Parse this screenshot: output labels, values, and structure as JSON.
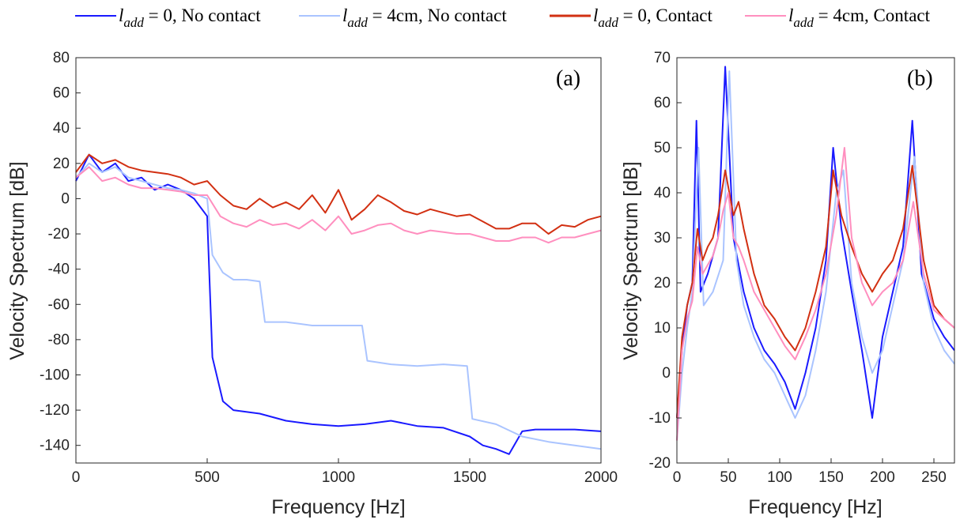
{
  "legend": [
    {
      "var": "l",
      "sub": "add",
      "rest": " = 0, No contact",
      "color": "#1a1aff"
    },
    {
      "var": "l",
      "sub": "add",
      "rest": " = 4cm, No contact",
      "color": "#aac4ff"
    },
    {
      "var": "l",
      "sub": "add",
      "rest": " = 0, Contact",
      "color": "#d23012"
    },
    {
      "var": "l",
      "sub": "add",
      "rest": " = 4cm, Contact",
      "color": "#ff8fbf"
    }
  ],
  "chart_data": [
    {
      "type": "line",
      "panel_label": "(a)",
      "xlabel": "Frequency [Hz]",
      "ylabel": "Velocity Spectrum [dB]",
      "xlim": [
        0,
        2000
      ],
      "ylim": [
        -150,
        80
      ],
      "xticks": [
        0,
        500,
        1000,
        1500,
        2000
      ],
      "yticks": [
        80,
        60,
        40,
        20,
        0,
        -20,
        -40,
        -60,
        -80,
        -100,
        -120,
        -140
      ],
      "grid": false,
      "series": [
        {
          "name": "l_add = 0, No contact",
          "color": "#1a1aff",
          "x": [
            0,
            50,
            100,
            150,
            200,
            250,
            300,
            350,
            400,
            450,
            500,
            520,
            560,
            600,
            700,
            800,
            900,
            1000,
            1100,
            1200,
            1300,
            1400,
            1500,
            1550,
            1600,
            1650,
            1700,
            1750,
            1800,
            1900,
            2000
          ],
          "y": [
            10,
            25,
            15,
            20,
            10,
            12,
            5,
            8,
            5,
            0,
            -10,
            -90,
            -115,
            -120,
            -122,
            -126,
            -128,
            -129,
            -128,
            -126,
            -129,
            -130,
            -135,
            -140,
            -142,
            -145,
            -132,
            -131,
            -131,
            -131,
            -132
          ]
        },
        {
          "name": "l_add = 4cm, No contact",
          "color": "#aac4ff",
          "x": [
            0,
            50,
            100,
            150,
            200,
            250,
            300,
            350,
            400,
            450,
            500,
            520,
            560,
            600,
            650,
            700,
            720,
            800,
            900,
            1000,
            1090,
            1110,
            1200,
            1300,
            1400,
            1490,
            1510,
            1600,
            1700,
            1800,
            1900,
            2000
          ],
          "y": [
            12,
            20,
            15,
            18,
            12,
            10,
            8,
            6,
            5,
            3,
            0,
            -32,
            -42,
            -46,
            -46,
            -47,
            -70,
            -70,
            -72,
            -72,
            -72,
            -92,
            -94,
            -95,
            -94,
            -95,
            -125,
            -128,
            -135,
            -138,
            -140,
            -142
          ]
        },
        {
          "name": "l_add = 0, Contact",
          "color": "#d23012",
          "x": [
            0,
            50,
            100,
            150,
            200,
            250,
            300,
            350,
            400,
            450,
            500,
            550,
            600,
            650,
            700,
            750,
            800,
            850,
            900,
            950,
            1000,
            1050,
            1100,
            1150,
            1200,
            1250,
            1300,
            1350,
            1400,
            1450,
            1500,
            1550,
            1600,
            1650,
            1700,
            1750,
            1800,
            1850,
            1900,
            1950,
            2000
          ],
          "y": [
            15,
            25,
            20,
            22,
            18,
            16,
            15,
            14,
            12,
            8,
            10,
            2,
            -4,
            -6,
            0,
            -5,
            -2,
            -6,
            2,
            -8,
            5,
            -12,
            -6,
            2,
            -2,
            -7,
            -9,
            -6,
            -8,
            -10,
            -9,
            -13,
            -17,
            -17,
            -14,
            -14,
            -20,
            -15,
            -16,
            -12,
            -10
          ]
        },
        {
          "name": "l_add = 4cm, Contact",
          "color": "#ff8fbf",
          "x": [
            0,
            50,
            100,
            150,
            200,
            250,
            300,
            350,
            400,
            450,
            500,
            550,
            600,
            650,
            700,
            750,
            800,
            850,
            900,
            950,
            1000,
            1050,
            1100,
            1150,
            1200,
            1250,
            1300,
            1350,
            1400,
            1450,
            1500,
            1550,
            1600,
            1650,
            1700,
            1750,
            1800,
            1850,
            1900,
            1950,
            2000
          ],
          "y": [
            12,
            18,
            10,
            12,
            8,
            6,
            6,
            5,
            4,
            2,
            2,
            -10,
            -14,
            -16,
            -12,
            -15,
            -14,
            -17,
            -12,
            -18,
            -10,
            -20,
            -18,
            -15,
            -14,
            -18,
            -20,
            -18,
            -19,
            -20,
            -20,
            -22,
            -24,
            -24,
            -22,
            -22,
            -25,
            -22,
            -22,
            -20,
            -18
          ]
        }
      ]
    },
    {
      "type": "line",
      "panel_label": "(b)",
      "xlabel": "Frequency [Hz]",
      "ylabel": "Velocity Spectrum [dB]",
      "xlim": [
        0,
        270
      ],
      "ylim": [
        -20,
        70
      ],
      "xticks": [
        0,
        50,
        100,
        150,
        200,
        250
      ],
      "yticks": [
        70,
        60,
        50,
        40,
        30,
        20,
        10,
        0,
        -10,
        -20
      ],
      "grid": false,
      "series": [
        {
          "name": "l_add = 0, No contact",
          "color": "#1a1aff",
          "x": [
            0,
            5,
            10,
            15,
            19,
            23,
            30,
            40,
            47,
            55,
            65,
            75,
            85,
            95,
            105,
            115,
            125,
            135,
            145,
            152,
            160,
            170,
            180,
            190,
            200,
            210,
            220,
            229,
            238,
            250,
            260,
            270
          ],
          "y": [
            -10,
            5,
            15,
            20,
            56,
            18,
            22,
            30,
            68,
            30,
            18,
            10,
            5,
            2,
            -2,
            -8,
            0,
            10,
            25,
            50,
            32,
            18,
            5,
            -10,
            8,
            18,
            28,
            56,
            22,
            12,
            8,
            5
          ]
        },
        {
          "name": "l_add = 4cm, No contact",
          "color": "#aac4ff",
          "x": [
            0,
            5,
            10,
            15,
            21,
            26,
            35,
            45,
            51,
            58,
            65,
            75,
            85,
            95,
            105,
            115,
            125,
            135,
            145,
            155,
            162,
            170,
            180,
            190,
            200,
            210,
            220,
            231,
            240,
            250,
            260,
            270
          ],
          "y": [
            -15,
            0,
            10,
            18,
            50,
            15,
            18,
            25,
            67,
            25,
            15,
            8,
            3,
            0,
            -5,
            -10,
            -5,
            5,
            18,
            40,
            45,
            20,
            8,
            0,
            5,
            15,
            25,
            48,
            20,
            10,
            5,
            2
          ]
        },
        {
          "name": "l_add = 0, Contact",
          "color": "#d23012",
          "x": [
            0,
            5,
            10,
            15,
            20,
            25,
            30,
            35,
            40,
            47,
            55,
            60,
            65,
            75,
            85,
            95,
            105,
            115,
            125,
            135,
            145,
            152,
            160,
            170,
            180,
            190,
            200,
            210,
            220,
            229,
            240,
            250,
            260,
            270
          ],
          "y": [
            -10,
            8,
            15,
            20,
            32,
            25,
            28,
            30,
            35,
            45,
            35,
            38,
            32,
            22,
            15,
            12,
            8,
            5,
            10,
            18,
            28,
            45,
            35,
            28,
            22,
            18,
            22,
            25,
            32,
            46,
            25,
            15,
            12,
            10
          ]
        },
        {
          "name": "l_add = 4cm, Contact",
          "color": "#ff8fbf",
          "x": [
            0,
            5,
            10,
            15,
            20,
            25,
            30,
            35,
            40,
            45,
            50,
            55,
            60,
            65,
            75,
            85,
            95,
            105,
            115,
            125,
            135,
            145,
            155,
            163,
            170,
            180,
            190,
            200,
            210,
            220,
            230,
            240,
            250,
            260,
            270
          ],
          "y": [
            -15,
            5,
            12,
            16,
            28,
            22,
            24,
            26,
            30,
            36,
            40,
            30,
            28,
            25,
            18,
            14,
            10,
            6,
            3,
            8,
            14,
            22,
            35,
            50,
            30,
            20,
            15,
            18,
            20,
            25,
            38,
            22,
            14,
            12,
            10
          ]
        }
      ]
    }
  ]
}
